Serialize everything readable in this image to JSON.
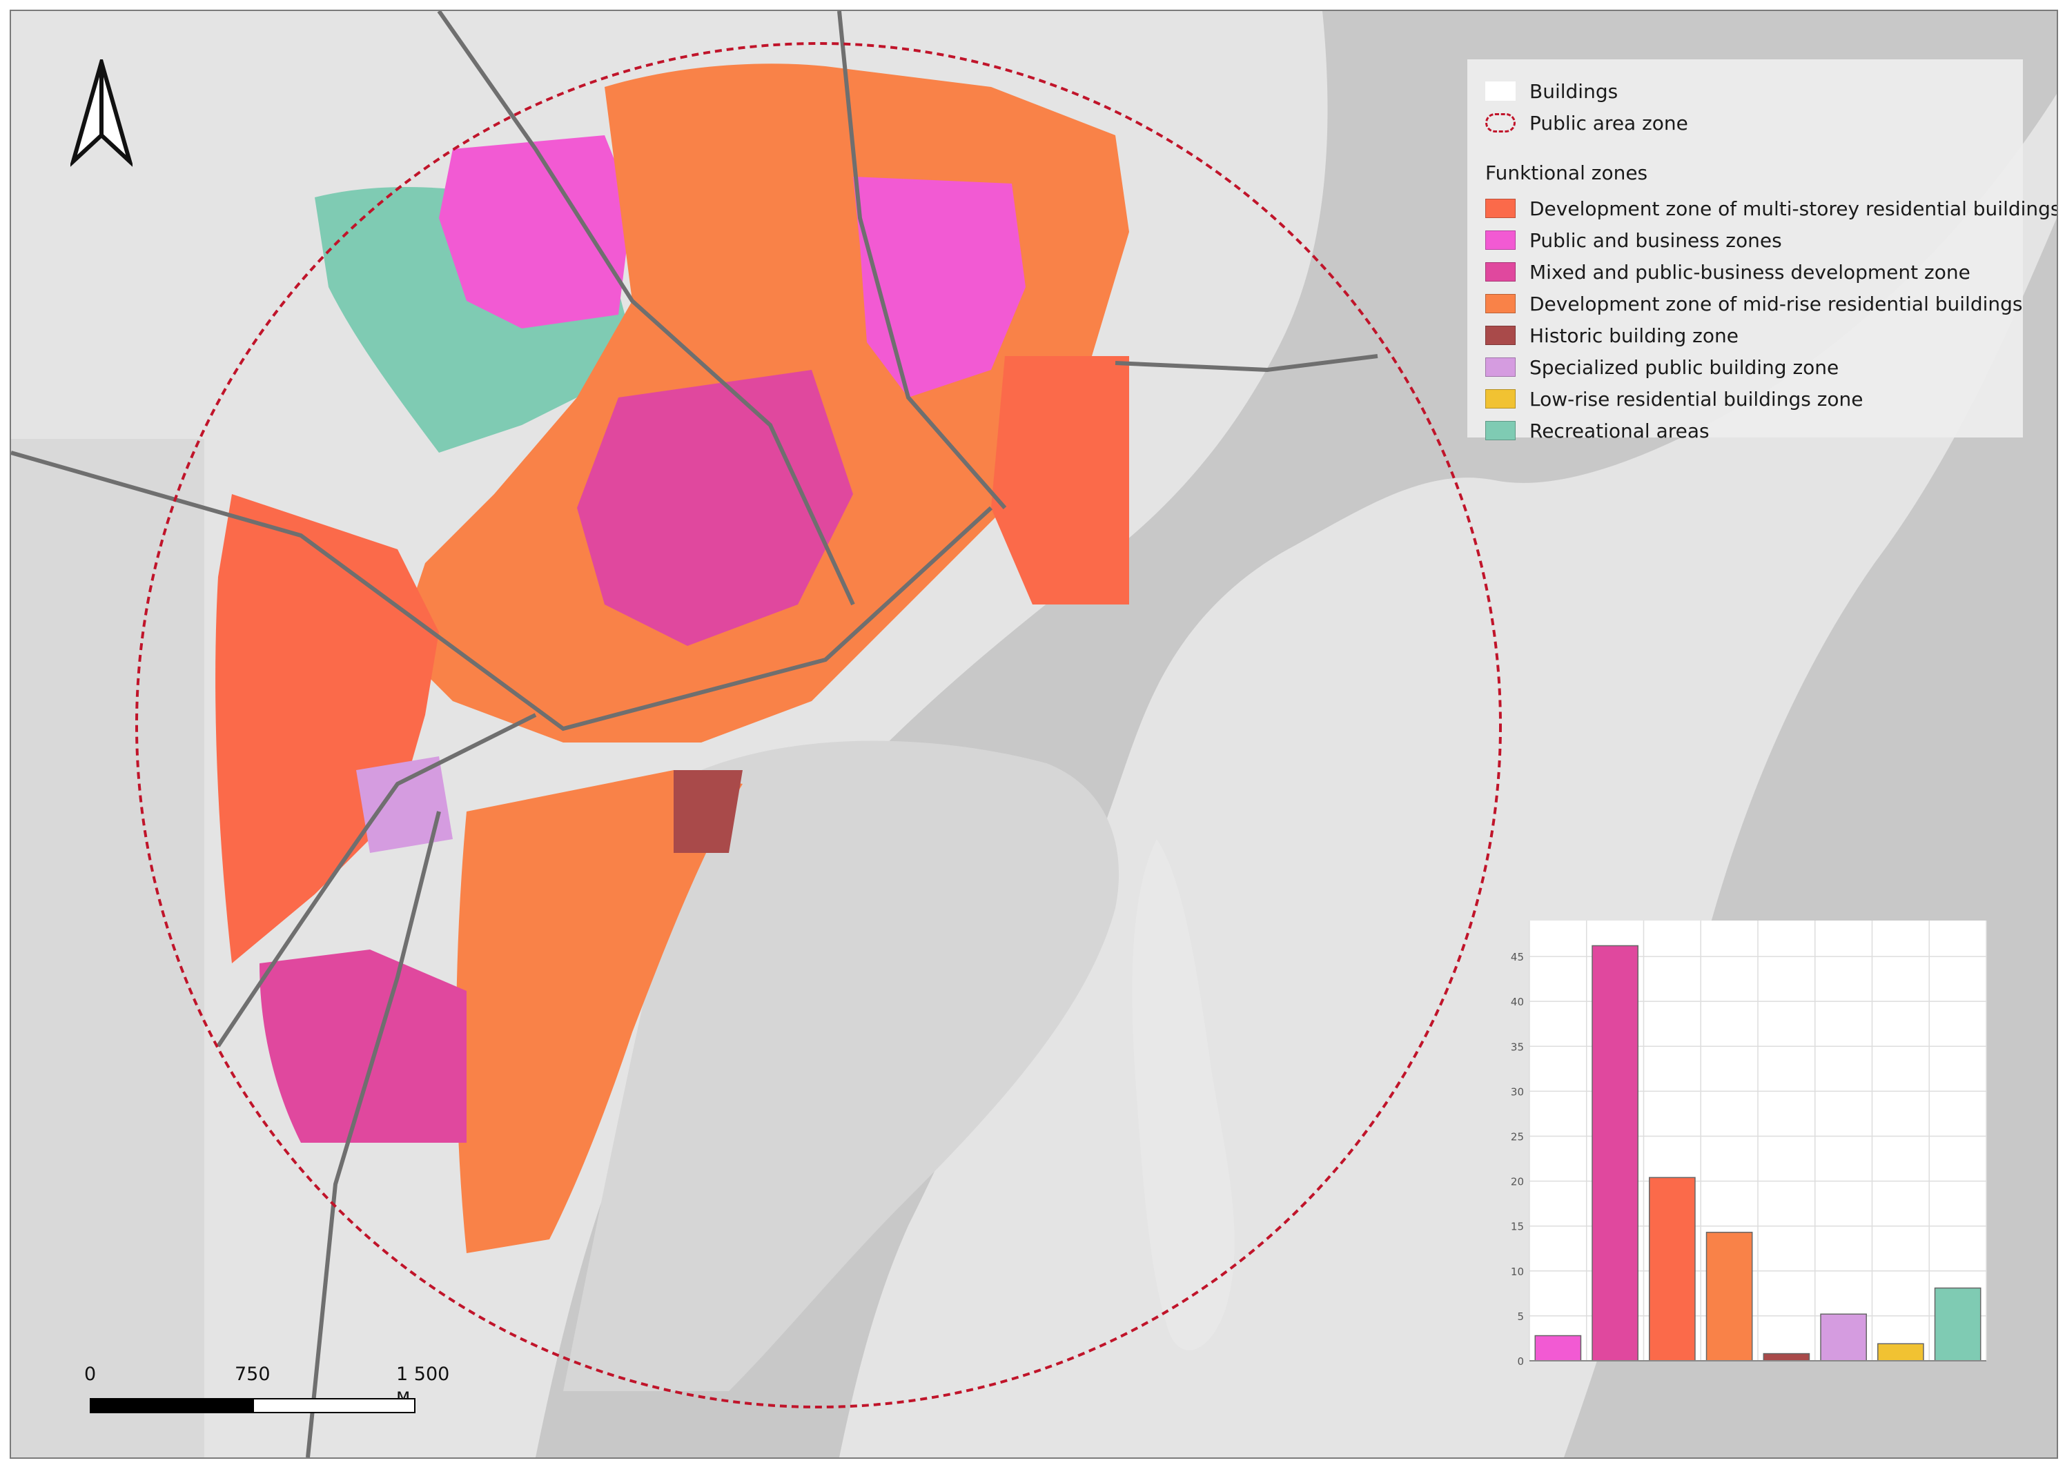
{
  "legend": {
    "buildings_label": "Buildings",
    "public_area_label": "Public area zone",
    "heading": "Funktional zones",
    "zones": [
      {
        "label": "Development zone of multi-storey residential buildings",
        "color": "#fb6a4a"
      },
      {
        "label": "Public and business zones",
        "color": "#f25ad3"
      },
      {
        "label": "Mixed and public-business development zone",
        "color": "#e0489e"
      },
      {
        "label": "Development zone of mid-rise residential buildings",
        "color": "#f98248"
      },
      {
        "label": "Historic building zone",
        "color": "#a94a4a"
      },
      {
        "label": "Specialized public building zone",
        "color": "#d59ce0"
      },
      {
        "label": "Low-rise residential buildings zone",
        "color": "#f1c232"
      },
      {
        "label": "Recreational areas",
        "color": "#7fcbb3"
      }
    ],
    "buildings_color": "#ffffff",
    "public_area_color": "#c0142a"
  },
  "chart_data": {
    "type": "bar",
    "values": [
      2.8,
      46.2,
      20.4,
      14.3,
      0.8,
      5.2,
      1.9,
      8.1
    ],
    "colors": [
      "#f25ad3",
      "#e0489e",
      "#fb6a4a",
      "#f98248",
      "#a94a4a",
      "#d59ce0",
      "#f1c232",
      "#7fcbb3"
    ],
    "yticks": [
      "0",
      "5",
      "10",
      "15",
      "20",
      "25",
      "30",
      "35",
      "40",
      "45"
    ],
    "ylim": [
      0,
      49
    ]
  },
  "scalebar": {
    "labels": [
      "0",
      "750",
      "1 500 м"
    ]
  },
  "north_arrow_icon": "north-arrow-icon"
}
